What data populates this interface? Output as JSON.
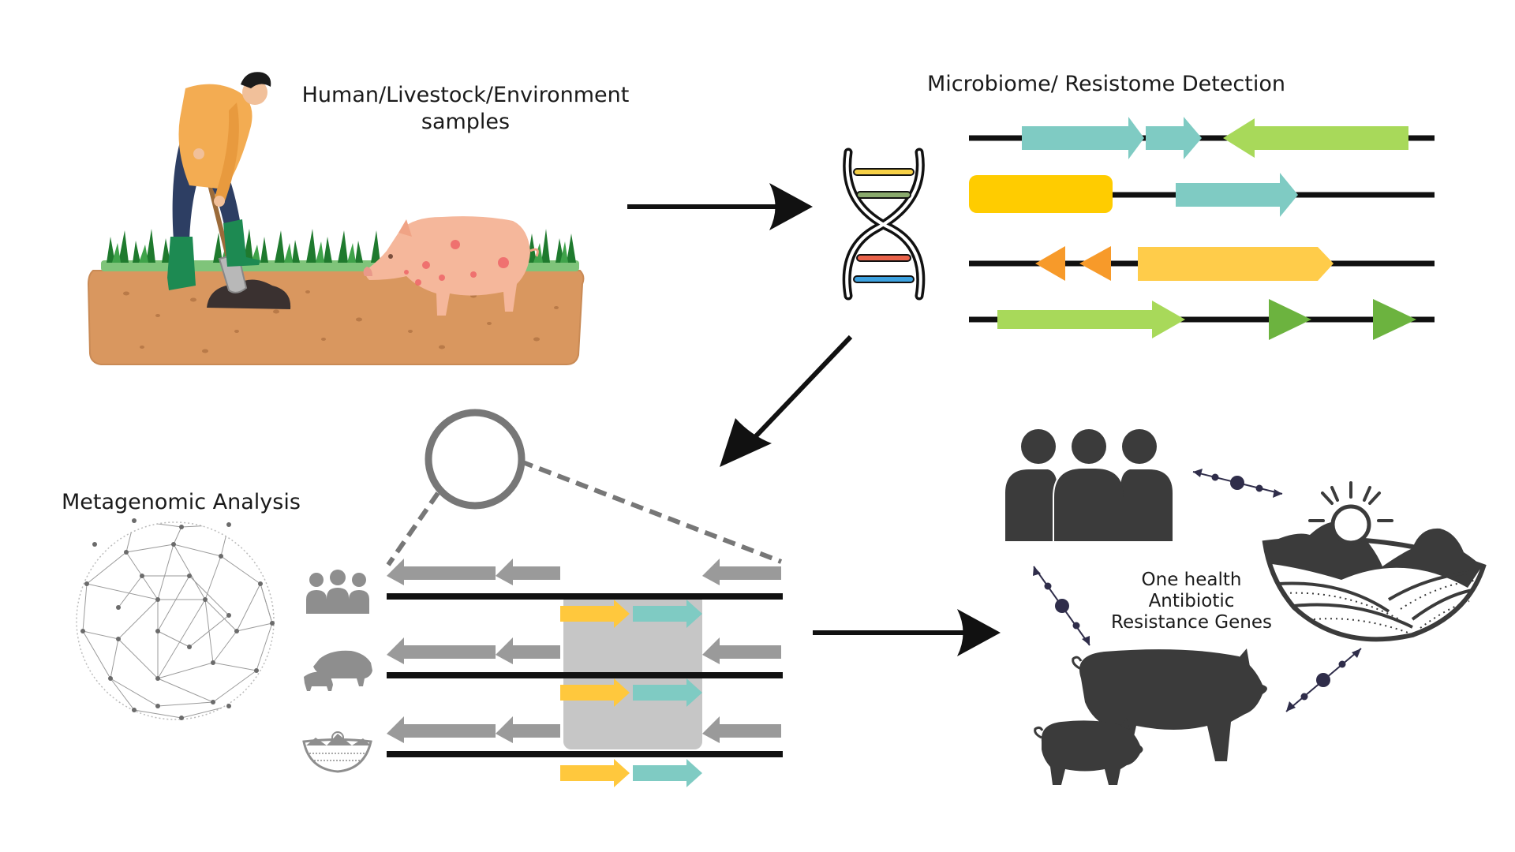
{
  "labels": {
    "samples_line1": "Human/Livestock/Environment",
    "samples_line2": "samples",
    "detection": "Microbiome/ Resistome Detection",
    "metagenomic": "Metagenomic Analysis",
    "onehealth_line1": "One health",
    "onehealth_line2": "Antibiotic",
    "onehealth_line3": "Resistance Genes"
  },
  "icons": {
    "farmer": "farmer-digging-icon",
    "pig": "pig-icon",
    "dna": "dna-double-helix-icon",
    "magnifier": "magnifier-circle-icon",
    "network": "network-sphere-icon",
    "people": "people-group-icon",
    "landscape": "landscape-sun-icon",
    "livestock": "pigs-icon"
  },
  "colors": {
    "teal_gene": "#7fcbc3",
    "green_gene": "#a8d95a",
    "dark_green_gene": "#6cb33f",
    "yellow_gene": "#ffc83d",
    "gold_gene": "#ffcc00",
    "orange_gene": "#f79a2a",
    "gray_gene": "#9a9a9a",
    "silhouette": "#3b3b3b",
    "connector": "#2f2d4a"
  }
}
